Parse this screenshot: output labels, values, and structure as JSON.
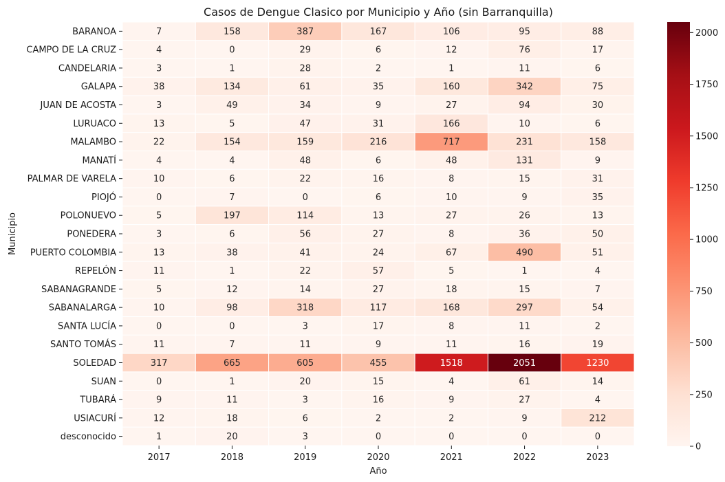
{
  "chart_data": {
    "type": "heatmap",
    "title": "Casos de Dengue Clasico por Municipio y Año (sin Barranquilla)",
    "xlabel": "Año",
    "ylabel": "Municipio",
    "x": [
      "2017",
      "2018",
      "2019",
      "2020",
      "2021",
      "2022",
      "2023"
    ],
    "y": [
      "BARANOA",
      "CAMPO DE LA CRUZ",
      "CANDELARIA",
      "GALAPA",
      "JUAN DE ACOSTA",
      "LURUACO",
      "MALAMBO",
      "MANATÍ",
      "PALMAR DE VARELA",
      "PIOJÓ",
      "POLONUEVO",
      "PONEDERA",
      "PUERTO COLOMBIA",
      "REPELÓN",
      "SABANAGRANDE",
      "SABANALARGA",
      "SANTA LUCÍA",
      "SANTO TOMÁS",
      "SOLEDAD",
      "SUAN",
      "TUBARÁ",
      "USIACURÍ",
      "desconocido"
    ],
    "values": [
      [
        7,
        158,
        387,
        167,
        106,
        95,
        88
      ],
      [
        4,
        0,
        29,
        6,
        12,
        76,
        17
      ],
      [
        3,
        1,
        28,
        2,
        1,
        11,
        6
      ],
      [
        38,
        134,
        61,
        35,
        160,
        342,
        75
      ],
      [
        3,
        49,
        34,
        9,
        27,
        94,
        30
      ],
      [
        13,
        5,
        47,
        31,
        166,
        10,
        6
      ],
      [
        22,
        154,
        159,
        216,
        717,
        231,
        158
      ],
      [
        4,
        4,
        48,
        6,
        48,
        131,
        9
      ],
      [
        10,
        6,
        22,
        16,
        8,
        15,
        31
      ],
      [
        0,
        7,
        0,
        6,
        10,
        9,
        35
      ],
      [
        5,
        197,
        114,
        13,
        27,
        26,
        13
      ],
      [
        3,
        6,
        56,
        27,
        8,
        36,
        50
      ],
      [
        13,
        38,
        41,
        24,
        67,
        490,
        51
      ],
      [
        11,
        1,
        22,
        57,
        5,
        1,
        4
      ],
      [
        5,
        12,
        14,
        27,
        18,
        15,
        7
      ],
      [
        10,
        98,
        318,
        117,
        168,
        297,
        54
      ],
      [
        0,
        0,
        3,
        17,
        8,
        11,
        2
      ],
      [
        11,
        7,
        11,
        9,
        11,
        16,
        19
      ],
      [
        317,
        665,
        605,
        455,
        1518,
        2051,
        1230
      ],
      [
        0,
        1,
        20,
        15,
        4,
        61,
        14
      ],
      [
        9,
        11,
        3,
        16,
        9,
        27,
        4
      ],
      [
        12,
        18,
        6,
        2,
        2,
        9,
        212
      ],
      [
        1,
        20,
        3,
        0,
        0,
        0,
        0
      ]
    ],
    "colormap": "Reds",
    "vmin": 0,
    "vmax": 2051,
    "colorbar_ticks": [
      "0",
      "250",
      "500",
      "750",
      "1000",
      "1250",
      "1500",
      "1750",
      "2000"
    ],
    "colorbar_tick_values": [
      0,
      250,
      500,
      750,
      1000,
      1250,
      1500,
      1750,
      2000
    ],
    "annotations": true,
    "grid_lines": "white"
  }
}
